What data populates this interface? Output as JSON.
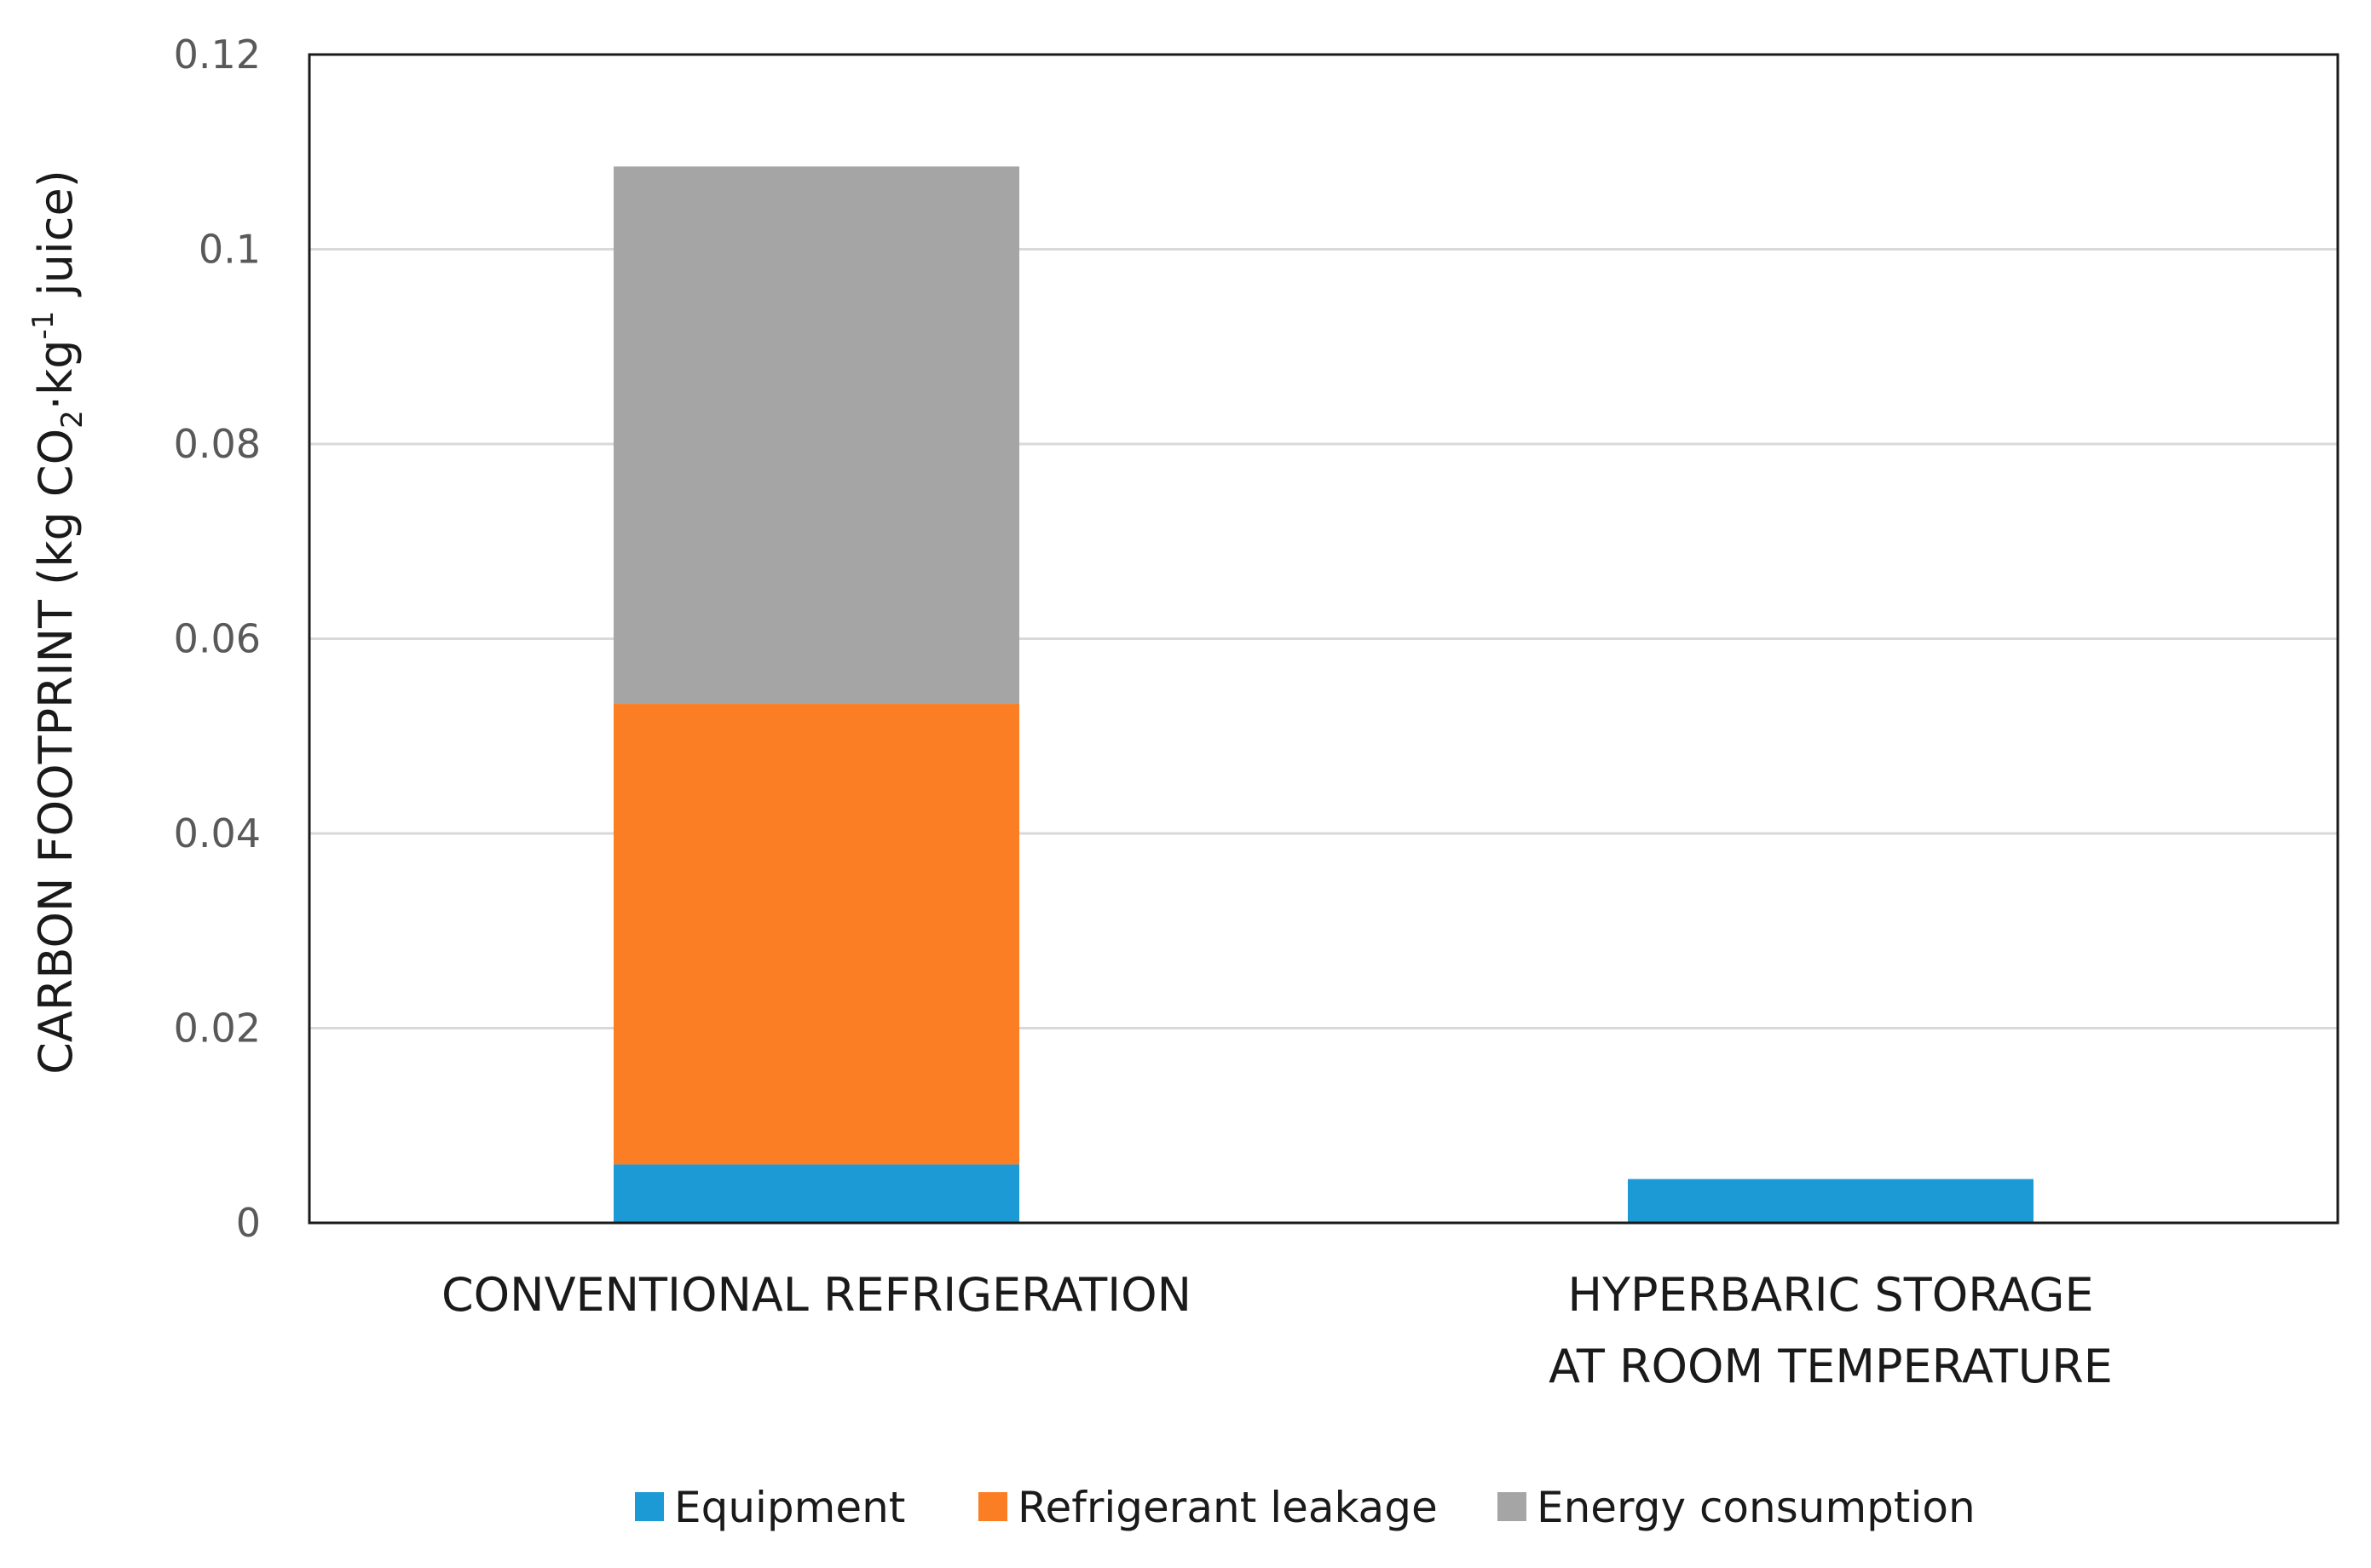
{
  "chart_data": {
    "type": "bar",
    "stacked": true,
    "title": "",
    "xlabel": "",
    "ylabel": {
      "prefix": "CARBON FOOTPRINT (kg CO",
      "sub": "2",
      "middle": "·kg",
      "sup": "-1",
      "suffix": " juice)"
    },
    "ylim": [
      0,
      0.12
    ],
    "yticks": [
      0,
      0.02,
      0.04,
      0.06,
      0.08,
      0.1,
      0.12
    ],
    "ytick_labels": [
      "0",
      "0.02",
      "0.04",
      "0.06",
      "0.08",
      "0.1",
      "0.12"
    ],
    "grid": true,
    "legend_position": "bottom",
    "categories": [
      [
        "CONVENTIONAL REFRIGERATION"
      ],
      [
        "HYPERBARIC STORAGE",
        "AT ROOM TEMPERATURE"
      ]
    ],
    "series": [
      {
        "name": "Equipment",
        "color": "#1c9ad6",
        "values": [
          0.006,
          0.0045
        ]
      },
      {
        "name": "Refrigerant leakage",
        "color": "#fb7d24",
        "values": [
          0.0473,
          0
        ]
      },
      {
        "name": "Energy consumption",
        "color": "#a5a5a5",
        "values": [
          0.0552,
          0
        ]
      }
    ]
  }
}
